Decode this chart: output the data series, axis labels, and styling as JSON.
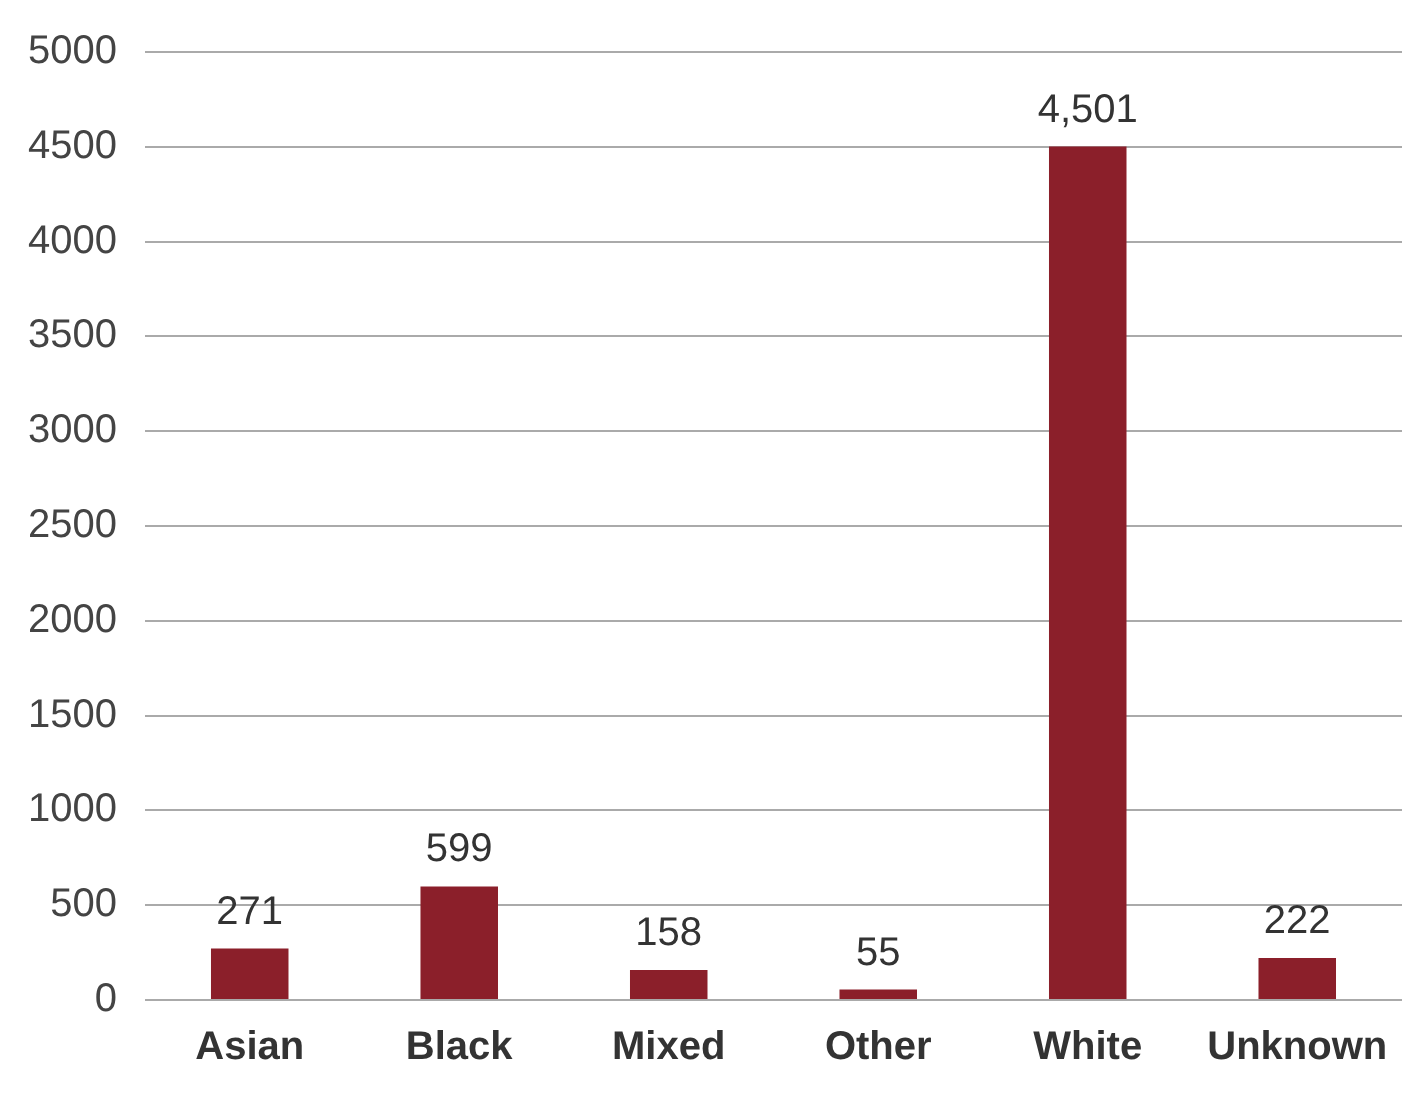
{
  "chart_data": {
    "type": "bar",
    "categories": [
      "Asian",
      "Black",
      "Mixed",
      "Other",
      "White",
      "Unknown"
    ],
    "values": [
      271,
      599,
      158,
      55,
      4501,
      222
    ],
    "value_labels": [
      "271",
      "599",
      "158",
      "55",
      "4,501",
      "222"
    ],
    "color": "#8b1f2a",
    "ylim": [
      0,
      5000
    ],
    "yticks": [
      0,
      500,
      1000,
      1500,
      2000,
      2500,
      3000,
      3500,
      4000,
      4500,
      5000
    ],
    "grid": "y",
    "legend": false
  }
}
